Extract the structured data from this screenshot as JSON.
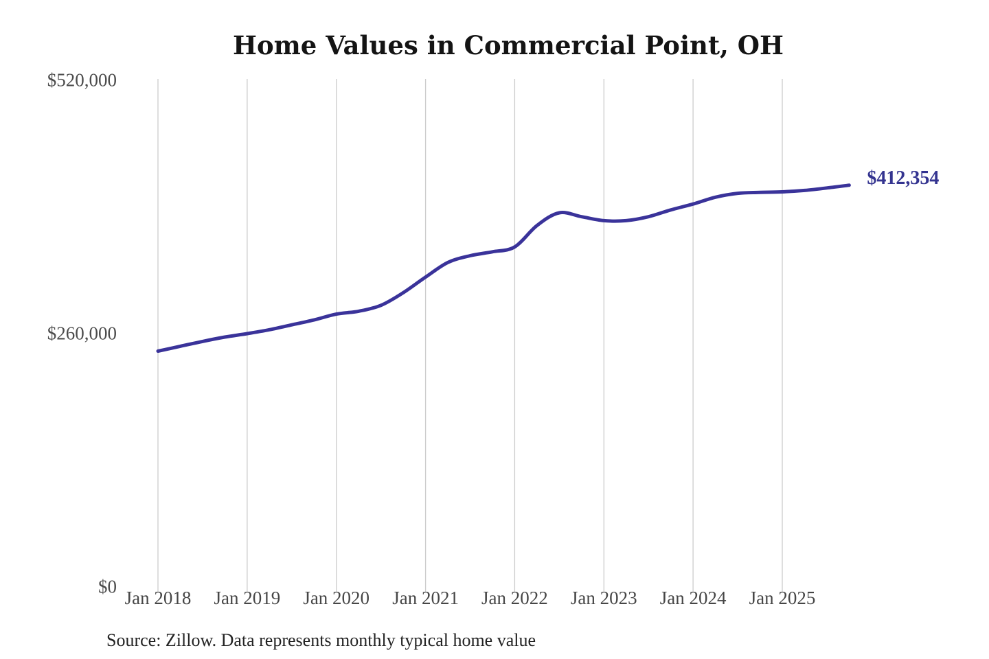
{
  "page": {
    "title": "Home Values in Commercial Point, OH",
    "source_note": "Source: Zillow. Data represents monthly typical home value"
  },
  "chart_data": {
    "type": "line",
    "title": "Home Values in Commercial Point, OH",
    "series_name": "Monthly typical home value",
    "x": [
      2018.0,
      2018.25,
      2018.5,
      2018.75,
      2019.0,
      2019.25,
      2019.5,
      2019.75,
      2020.0,
      2020.25,
      2020.5,
      2020.75,
      2021.0,
      2021.25,
      2021.5,
      2021.75,
      2022.0,
      2022.25,
      2022.5,
      2022.75,
      2023.0,
      2023.25,
      2023.5,
      2023.75,
      2024.0,
      2024.25,
      2024.5,
      2024.75,
      2025.0,
      2025.25,
      2025.5,
      2025.75
    ],
    "values": [
      242000,
      247000,
      252000,
      256500,
      260000,
      264000,
      269000,
      274000,
      280000,
      283000,
      289000,
      302000,
      318000,
      333000,
      340000,
      344000,
      349000,
      371000,
      384000,
      380000,
      376000,
      376000,
      380000,
      387000,
      393000,
      400000,
      404000,
      405000,
      405500,
      407000,
      409500,
      412354
    ],
    "end_label": "$412,354",
    "end_value": 412354,
    "xticks": [
      {
        "label": "Jan 2018",
        "year": 2018
      },
      {
        "label": "Jan 2019",
        "year": 2019
      },
      {
        "label": "Jan 2020",
        "year": 2020
      },
      {
        "label": "Jan 2021",
        "year": 2021
      },
      {
        "label": "Jan 2022",
        "year": 2022
      },
      {
        "label": "Jan 2023",
        "year": 2023
      },
      {
        "label": "Jan 2024",
        "year": 2024
      },
      {
        "label": "Jan 2025",
        "year": 2025
      }
    ],
    "yticks": [
      {
        "label": "$0",
        "value": 0
      },
      {
        "label": "$260,000",
        "value": 260000
      },
      {
        "label": "$520,000",
        "value": 520000
      }
    ],
    "ylim": [
      0,
      520000
    ],
    "xlim": [
      2018.0,
      2025.83
    ],
    "grid": "vertical-only",
    "legend": "none",
    "line_color": "#3a339a",
    "end_label_color": "#343490",
    "gridline_color": "#cccccc",
    "source": "Source: Zillow. Data represents monthly typical home value"
  }
}
